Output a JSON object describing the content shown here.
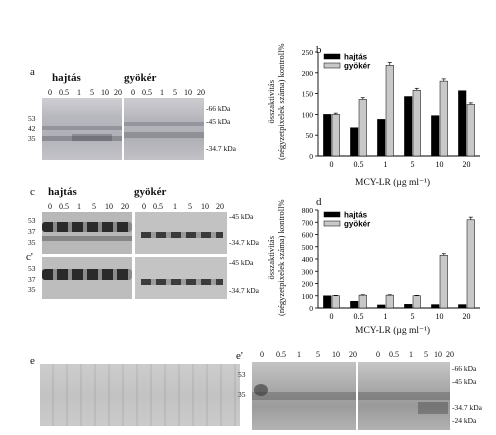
{
  "panels": {
    "a": {
      "letter": "a",
      "group_labels": [
        "hajtás",
        "gyökér"
      ],
      "lanes_left": [
        "0",
        "0.5",
        "1",
        "5",
        "10",
        "20"
      ],
      "lanes_right": [
        "0",
        "0.5",
        "1",
        "5",
        "10",
        "20"
      ],
      "kda_labels": [
        "-66 kDa",
        "-45 kDa",
        "-34.7 kDa"
      ],
      "markers": [
        "53",
        "42",
        "35"
      ]
    },
    "b": {
      "letter": "b",
      "ylabel_line1": "összaktivitás",
      "ylabel_line2": "(négyzetpixelek száma) kontroll%",
      "xlabel": "MCY-LR (µg ml⁻¹)"
    },
    "c": {
      "letter": "c",
      "group_labels": [
        "hajtás",
        "gyökér"
      ],
      "lanes_left": [
        "0",
        "0.5",
        "1",
        "5",
        "10",
        "20"
      ],
      "lanes_right": [
        "0",
        "0.5",
        "1",
        "5",
        "10",
        "20"
      ],
      "kda_labels": [
        "-45 kDa",
        "-34.7 kDa"
      ],
      "markers": [
        "53",
        "37",
        "35"
      ]
    },
    "c_prime": {
      "letter": "c'",
      "kda_labels": [
        "-45 kDa",
        "-34.7 kDa"
      ],
      "markers": [
        "53",
        "37",
        "35"
      ]
    },
    "d": {
      "letter": "d",
      "ylabel_line1": "összaktivitás",
      "ylabel_line2": "(négyzetpixelek száma) kontroll%",
      "xlabel": "MCY-LR (µg ml⁻¹)"
    },
    "e": {
      "letter": "e"
    },
    "e_prime": {
      "letter": "e'",
      "lanes": [
        "0",
        "0.5",
        "1",
        "5",
        "10",
        "20"
      ],
      "kda_labels": [
        "-66 kDa",
        "-45 kDa",
        "-34.7 kDa",
        "-24 kDa"
      ],
      "markers": [
        "53",
        "35"
      ]
    }
  },
  "chart_data": [
    {
      "type": "bar",
      "panel": "b",
      "categories": [
        "0",
        "0.5",
        "1",
        "5",
        "10",
        "20"
      ],
      "series": [
        {
          "name": "hajtás",
          "values": [
            100,
            68,
            88,
            143,
            97,
            157
          ],
          "color": "#000000"
        },
        {
          "name": "gyökér",
          "values": [
            100,
            136,
            218,
            158,
            180,
            124
          ],
          "color": "#c8c8c8"
        }
      ],
      "ylim": [
        0,
        250
      ],
      "yticks": [
        0,
        50,
        100,
        150,
        200,
        250
      ],
      "legend_position": "top-left",
      "error_bars": true
    },
    {
      "type": "bar",
      "panel": "d",
      "categories": [
        "0",
        "0.5",
        "1",
        "5",
        "10",
        "20"
      ],
      "series": [
        {
          "name": "hajtás",
          "values": [
            100,
            55,
            25,
            30,
            28,
            28
          ],
          "color": "#000000"
        },
        {
          "name": "gyökér",
          "values": [
            100,
            105,
            105,
            100,
            430,
            720
          ],
          "color": "#c8c8c8"
        }
      ],
      "ylim": [
        0,
        800
      ],
      "yticks": [
        0,
        100,
        200,
        300,
        400,
        500,
        600,
        700,
        800
      ],
      "legend_position": "top-left",
      "error_bars": true
    }
  ]
}
